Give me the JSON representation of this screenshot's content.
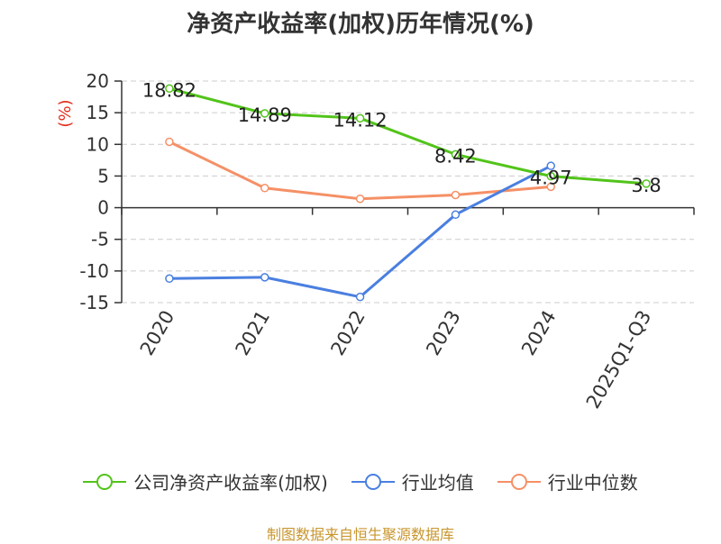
{
  "chart_data": {
    "type": "line",
    "title": "净资产收益率(加权)历年情况(%)",
    "ylabel": "(%)",
    "categories": [
      "2020",
      "2021",
      "2022",
      "2023",
      "2024",
      "2025Q1-Q3"
    ],
    "ylim": [
      -15,
      20
    ],
    "yticks": [
      20,
      15,
      10,
      5,
      0,
      -5,
      -10,
      -15
    ],
    "grid": true,
    "legend_position": "bottom",
    "series": [
      {
        "name": "公司净资产收益率(加权)",
        "color": "#52c41a",
        "values": [
          18.82,
          14.89,
          14.12,
          8.42,
          4.97,
          3.8
        ],
        "labels": [
          "18.82",
          "14.89",
          "14.12",
          "8.42",
          "4.97",
          "3.8"
        ]
      },
      {
        "name": "行业均值",
        "color": "#4a7fe0",
        "values": [
          -11.2,
          -11.0,
          -14.1,
          -1.1,
          6.6,
          null
        ]
      },
      {
        "name": "行业中位数",
        "color": "#f59066",
        "values": [
          10.4,
          3.1,
          1.4,
          2.0,
          3.3,
          null
        ]
      }
    ]
  },
  "footer": {
    "source": "制图数据来自恒生聚源数据库"
  }
}
